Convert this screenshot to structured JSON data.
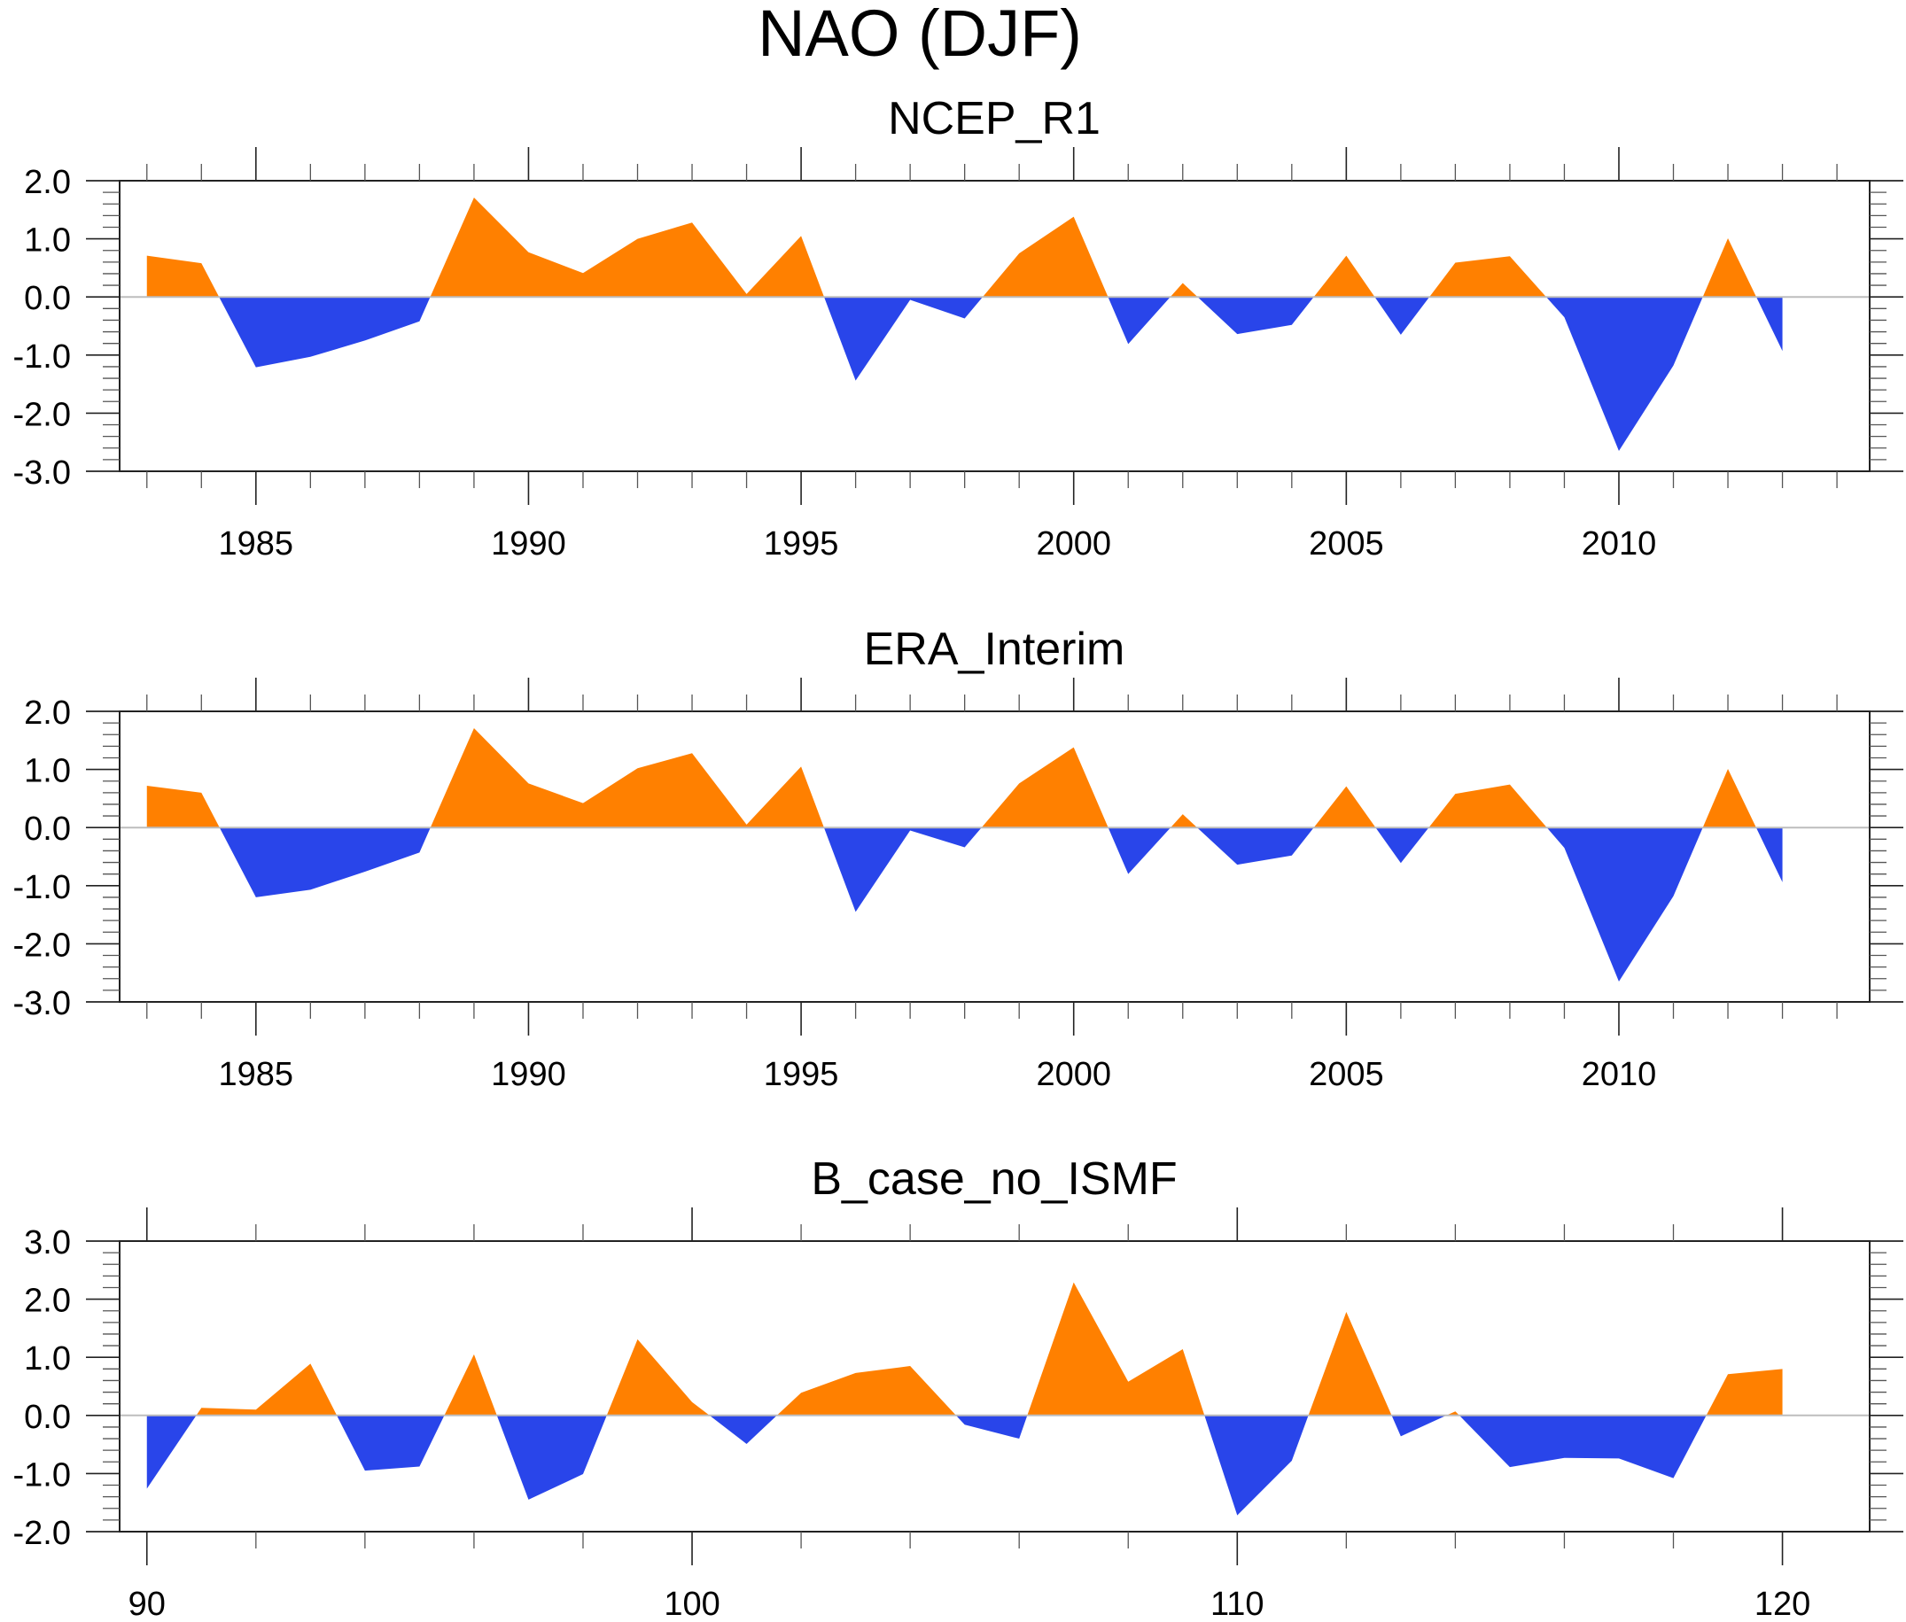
{
  "chart_data": {
    "title": "NAO (DJF)",
    "colors": {
      "positive": "#ff8000",
      "negative": "#2945ea",
      "zero_line": "#bdbdbd"
    },
    "panels": [
      {
        "type": "area",
        "title": "NCEP_R1",
        "xlabel": "",
        "ylabel": "",
        "xlim": [
          1982.5,
          2014.6
        ],
        "ylim": [
          -3.0,
          2.0
        ],
        "x_major_ticks": [
          1985,
          1990,
          1995,
          2000,
          2005,
          2010
        ],
        "x_major_labels": [
          "1985",
          "1990",
          "1995",
          "2000",
          "2005",
          "2010"
        ],
        "x_minor_step": 1,
        "y_major_ticks": [
          -3.0,
          -2.0,
          -1.0,
          0.0,
          1.0,
          2.0
        ],
        "y_major_labels": [
          "-3.0",
          "-2.0",
          "-1.0",
          "0.0",
          "1.0",
          "2.0"
        ],
        "y_minor_step": 0.2,
        "x": [
          1983,
          1984,
          1985,
          1986,
          1987,
          1988,
          1989,
          1990,
          1991,
          1992,
          1993,
          1994,
          1995,
          1996,
          1997,
          1998,
          1999,
          2000,
          2001,
          2002,
          2003,
          2004,
          2005,
          2006,
          2007,
          2008,
          2009,
          2010,
          2011,
          2012,
          2013
        ],
        "values": [
          0.71,
          0.58,
          -1.21,
          -1.03,
          -0.75,
          -0.42,
          1.71,
          0.77,
          0.41,
          1.0,
          1.28,
          0.05,
          1.05,
          -1.44,
          -0.05,
          -0.37,
          0.75,
          1.38,
          -0.81,
          0.24,
          -0.64,
          -0.48,
          0.71,
          -0.65,
          0.59,
          0.7,
          -0.35,
          -2.65,
          -1.18,
          1.01,
          -0.93
        ]
      },
      {
        "type": "area",
        "title": "ERA_Interim",
        "xlabel": "",
        "ylabel": "",
        "xlim": [
          1982.5,
          2014.6
        ],
        "ylim": [
          -3.0,
          2.0
        ],
        "x_major_ticks": [
          1985,
          1990,
          1995,
          2000,
          2005,
          2010
        ],
        "x_major_labels": [
          "1985",
          "1990",
          "1995",
          "2000",
          "2005",
          "2010"
        ],
        "x_minor_step": 1,
        "y_major_ticks": [
          -3.0,
          -2.0,
          -1.0,
          0.0,
          1.0,
          2.0
        ],
        "y_major_labels": [
          "-3.0",
          "-2.0",
          "-1.0",
          "0.0",
          "1.0",
          "2.0"
        ],
        "y_minor_step": 0.2,
        "x": [
          1983,
          1984,
          1985,
          1986,
          1987,
          1988,
          1989,
          1990,
          1991,
          1992,
          1993,
          1994,
          1995,
          1996,
          1997,
          1998,
          1999,
          2000,
          2001,
          2002,
          2003,
          2004,
          2005,
          2006,
          2007,
          2008,
          2009,
          2010,
          2011,
          2012,
          2013
        ],
        "values": [
          0.72,
          0.6,
          -1.2,
          -1.07,
          -0.76,
          -0.43,
          1.71,
          0.76,
          0.42,
          1.02,
          1.28,
          0.05,
          1.05,
          -1.45,
          -0.05,
          -0.34,
          0.76,
          1.38,
          -0.8,
          0.23,
          -0.64,
          -0.48,
          0.71,
          -0.61,
          0.58,
          0.74,
          -0.35,
          -2.65,
          -1.18,
          1.01,
          -0.94
        ]
      },
      {
        "type": "area",
        "title": "B_case_no_ISMF",
        "xlabel": "",
        "ylabel": "",
        "xlim": [
          89.5,
          121.6
        ],
        "ylim": [
          -2.0,
          3.0
        ],
        "x_major_ticks": [
          90,
          100,
          110,
          120
        ],
        "x_major_labels": [
          "90",
          "100",
          "110",
          "120"
        ],
        "x_minor_step": 2,
        "y_major_ticks": [
          -2.0,
          -1.0,
          0.0,
          1.0,
          2.0,
          3.0
        ],
        "y_major_labels": [
          "-2.0",
          "-1.0",
          "0.0",
          "1.0",
          "2.0",
          "3.0"
        ],
        "y_minor_step": 0.2,
        "x": [
          90,
          91,
          92,
          93,
          94,
          95,
          96,
          97,
          98,
          99,
          100,
          101,
          102,
          103,
          104,
          105,
          106,
          107,
          108,
          109,
          110,
          111,
          112,
          113,
          114,
          115,
          116,
          117,
          118,
          119,
          120
        ],
        "values": [
          -1.26,
          0.13,
          0.1,
          0.89,
          -0.95,
          -0.88,
          1.05,
          -1.45,
          -1.01,
          1.31,
          0.23,
          -0.49,
          0.39,
          0.73,
          0.85,
          -0.16,
          -0.4,
          2.29,
          0.58,
          1.14,
          -1.72,
          -0.78,
          1.78,
          -0.36,
          0.07,
          -0.89,
          -0.73,
          -0.74,
          -1.08,
          0.71,
          0.8
        ]
      }
    ]
  }
}
